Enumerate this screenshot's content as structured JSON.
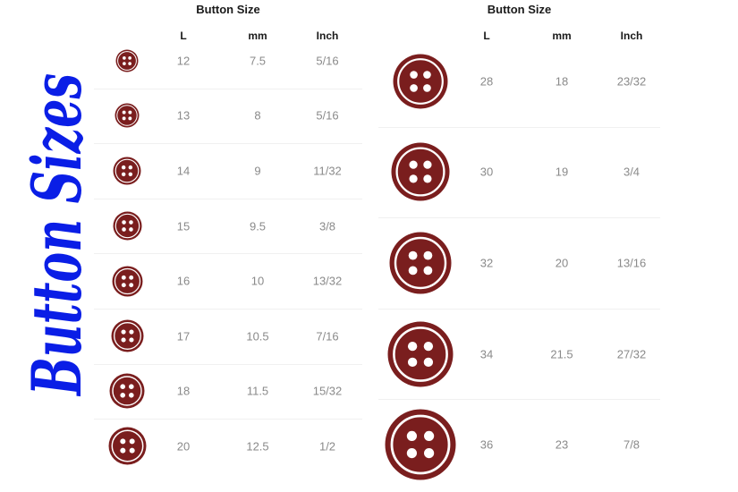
{
  "side_title": "Button Sizes",
  "colors": {
    "button": "#7a1e1e",
    "title": "#0a1ee6",
    "header": "#1a1a1a",
    "cells": "#8a8a8a"
  },
  "tables": [
    {
      "title": "Button Size",
      "headers": [
        "L",
        "mm",
        "Inch"
      ],
      "rows": [
        {
          "L": "12",
          "mm": "7.5",
          "inch": "5/16"
        },
        {
          "L": "13",
          "mm": "8",
          "inch": "5/16"
        },
        {
          "L": "14",
          "mm": "9",
          "inch": "11/32"
        },
        {
          "L": "15",
          "mm": "9.5",
          "inch": "3/8"
        },
        {
          "L": "16",
          "mm": "10",
          "inch": "13/32"
        },
        {
          "L": "17",
          "mm": "10.5",
          "inch": "7/16"
        },
        {
          "L": "18",
          "mm": "11.5",
          "inch": "15/32"
        },
        {
          "L": "20",
          "mm": "12.5",
          "inch": "1/2"
        }
      ]
    },
    {
      "title": "Button Size",
      "headers": [
        "L",
        "mm",
        "Inch"
      ],
      "rows": [
        {
          "L": "28",
          "mm": "18",
          "inch": "23/32"
        },
        {
          "L": "30",
          "mm": "19",
          "inch": "3/4"
        },
        {
          "L": "32",
          "mm": "20",
          "inch": "13/16"
        },
        {
          "L": "34",
          "mm": "21.5",
          "inch": "27/32"
        },
        {
          "L": "36",
          "mm": "23",
          "inch": "7/8"
        }
      ]
    }
  ]
}
